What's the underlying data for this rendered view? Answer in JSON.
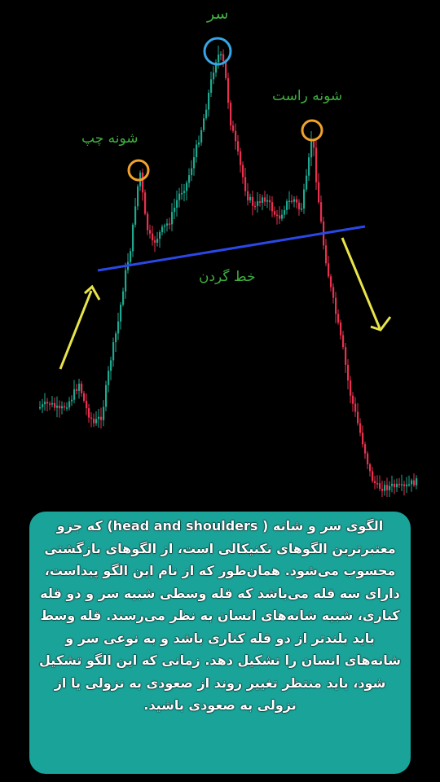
{
  "chart_data": {
    "type": "candlestick",
    "annotations": {
      "head": "سر",
      "left_shoulder": "شونه چپ",
      "right_shoulder": "شونه راست",
      "neckline": "خط گردن"
    },
    "colors": {
      "up": "#1fa88f",
      "down": "#e8314f",
      "neckline": "#2a48e8",
      "arrow": "#e8e44a",
      "left_shoulder_circle": "#f0a22c",
      "head_circle": "#36a6e6",
      "right_shoulder_circle": "#f0a22c",
      "annotation_text": "#3fae3f"
    }
  },
  "caption": {
    "text": "الگوی سر و شانه ( head and shoulders) که جزو معتبرترین الگوهای تکنیکالی است، از الگوهای بازگشتی محسوب می‌شود. همان‌طور که از نام این الگو پیداست، دارای سه قله می‌باشد که قله وسطی شبیه سر و دو قله کناری، شبیه شانه‌های انسان به نظر می‌رسند. قله وسط باید بلندتر از دو قله کناری باشد و به نوعی سر و شانه‌های انسان را تشکیل دهد. زمانی که این الگو تشکیل شود، باید منتظر تغییر روند از صعودی به نزولی یا از نزولی به صعودی باشید.",
    "background": "#1aa399"
  }
}
